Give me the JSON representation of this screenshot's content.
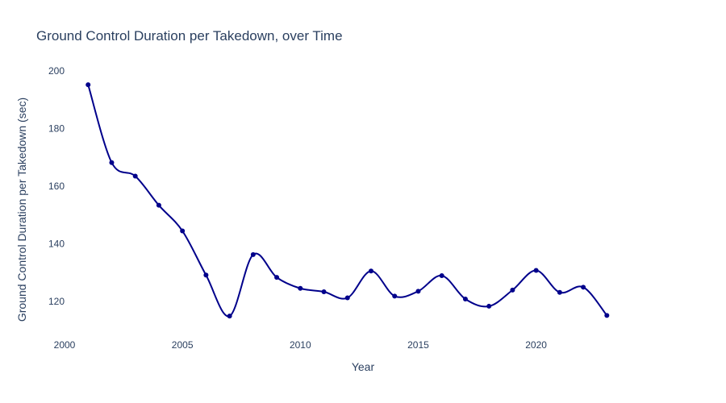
{
  "chart_data": {
    "type": "line",
    "title": "Ground Control Duration per Takedown, over Time",
    "xlabel": "Year",
    "ylabel": "Ground Control Duration per Takedown (sec)",
    "xlim": [
      2000,
      2026
    ],
    "ylim": [
      110,
      205
    ],
    "x_ticks": [
      2000,
      2005,
      2010,
      2015,
      2020
    ],
    "y_ticks": [
      120,
      140,
      160,
      180,
      200
    ],
    "grid": false,
    "line_shape": "spline",
    "series": [
      {
        "x": [
          2001,
          2002,
          2003,
          2004,
          2005,
          2006,
          2007,
          2008,
          2009,
          2010,
          2011,
          2012,
          2013,
          2014,
          2015,
          2016,
          2017,
          2018,
          2019,
          2020,
          2021,
          2022,
          2023
        ],
        "values": [
          195.2,
          168.2,
          163.5,
          153.4,
          144.5,
          129.2,
          115.0,
          136.3,
          128.4,
          124.6,
          123.4,
          121.3,
          130.6,
          121.9,
          123.6,
          129.0,
          120.9,
          118.4,
          124.0,
          130.8,
          123.2,
          125.0,
          115.2
        ]
      }
    ],
    "colors": {
      "line": "#00008b",
      "marker": "#00008b",
      "text": "#2a3f5f",
      "background": "#ffffff"
    }
  }
}
